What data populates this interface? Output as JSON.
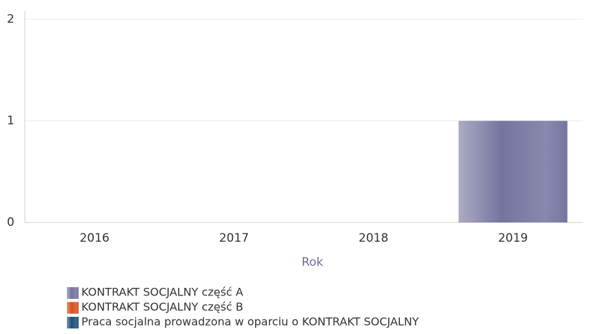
{
  "chart_data": {
    "type": "stacked_bar",
    "categories": [
      "2016",
      "2017",
      "2018",
      "2019"
    ],
    "series": [
      {
        "name": "KONTRAKT SOCJALNY część A",
        "color": "#74749f",
        "values": [
          0,
          0,
          0,
          1
        ]
      },
      {
        "name": "KONTRAKT SOCJALNY część B",
        "color": "#d9501e",
        "values": [
          0,
          0,
          0,
          0
        ]
      },
      {
        "name": "Praca socjalna prowadzona w oparciu o KONTRAKT SOCJALNY",
        "color": "#1f4e79",
        "values": [
          0,
          0,
          0,
          0
        ]
      }
    ],
    "x_label": "Rok",
    "ylim": [
      0,
      2
    ],
    "yticks": [
      0,
      1,
      2
    ],
    "grid": true
  }
}
